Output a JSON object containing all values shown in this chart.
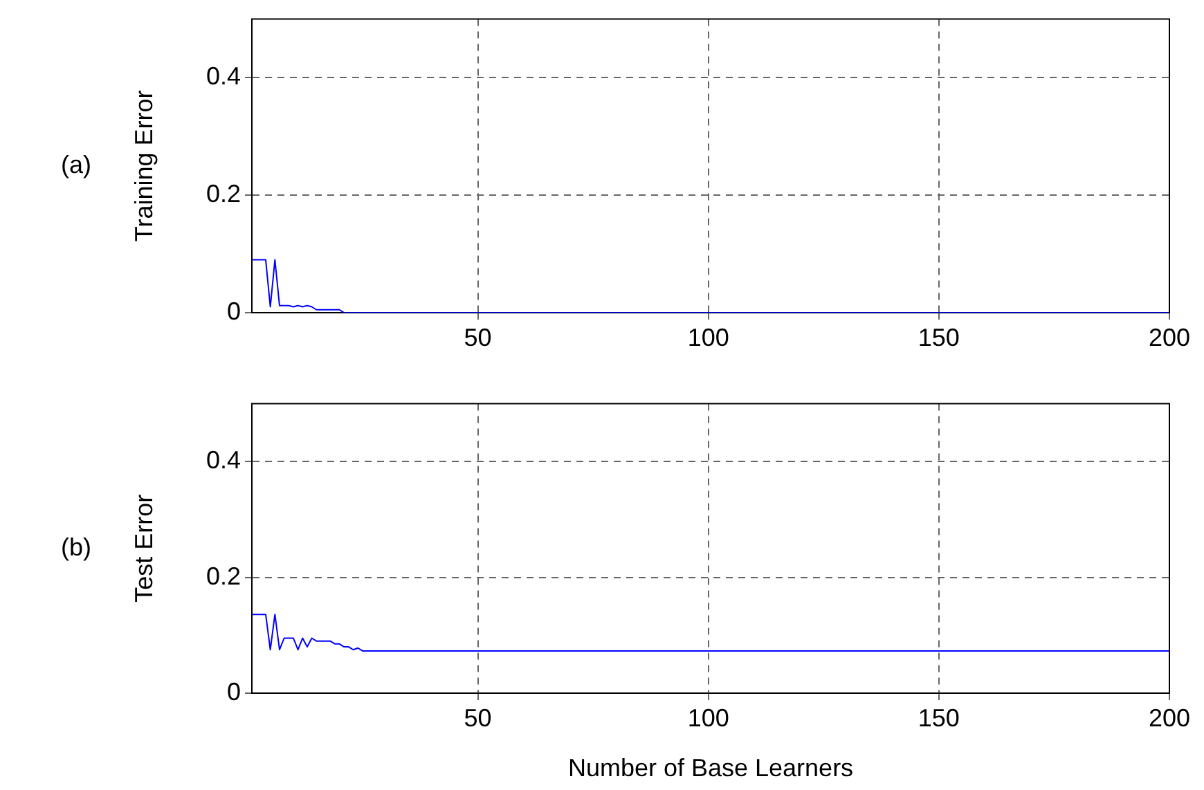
{
  "chart_data": [
    {
      "type": "line",
      "ylabel": "Training Error",
      "annotations": [
        "(a)"
      ],
      "xlim": [
        1,
        200
      ],
      "xticks": [
        50,
        100,
        150,
        200
      ],
      "ylim": [
        0,
        0.5
      ],
      "yticks": [
        0,
        0.2,
        0.4
      ],
      "grid": true,
      "legend": false,
      "marker": "none",
      "line_style": "solid",
      "series": [
        {
          "color": "#0000ff",
          "x": [
            1,
            4,
            5,
            6,
            7,
            8,
            9,
            10,
            11,
            12,
            13,
            14,
            15,
            20,
            21,
            200
          ],
          "values": [
            0.09,
            0.09,
            0.01,
            0.09,
            0.012,
            0.012,
            0.012,
            0.01,
            0.012,
            0.01,
            0.012,
            0.01,
            0.005,
            0.005,
            0,
            0
          ]
        }
      ]
    },
    {
      "type": "line",
      "ylabel": "Test Error",
      "xlabel": "Number of Base Learners",
      "annotations": [
        "(b)"
      ],
      "xlim": [
        1,
        200
      ],
      "xticks": [
        50,
        100,
        150,
        200
      ],
      "ylim": [
        0,
        0.5
      ],
      "yticks": [
        0,
        0.2,
        0.4
      ],
      "grid": true,
      "legend": false,
      "marker": "none",
      "line_style": "solid",
      "series": [
        {
          "color": "#0000ff",
          "x": [
            1,
            4,
            5,
            6,
            7,
            8,
            10,
            11,
            12,
            13,
            14,
            15,
            18,
            19,
            20,
            21,
            22,
            23,
            24,
            25,
            200
          ],
          "values": [
            0.136,
            0.136,
            0.075,
            0.136,
            0.075,
            0.095,
            0.095,
            0.075,
            0.095,
            0.08,
            0.095,
            0.09,
            0.09,
            0.085,
            0.085,
            0.08,
            0.08,
            0.075,
            0.078,
            0.073,
            0.073
          ]
        }
      ]
    }
  ]
}
